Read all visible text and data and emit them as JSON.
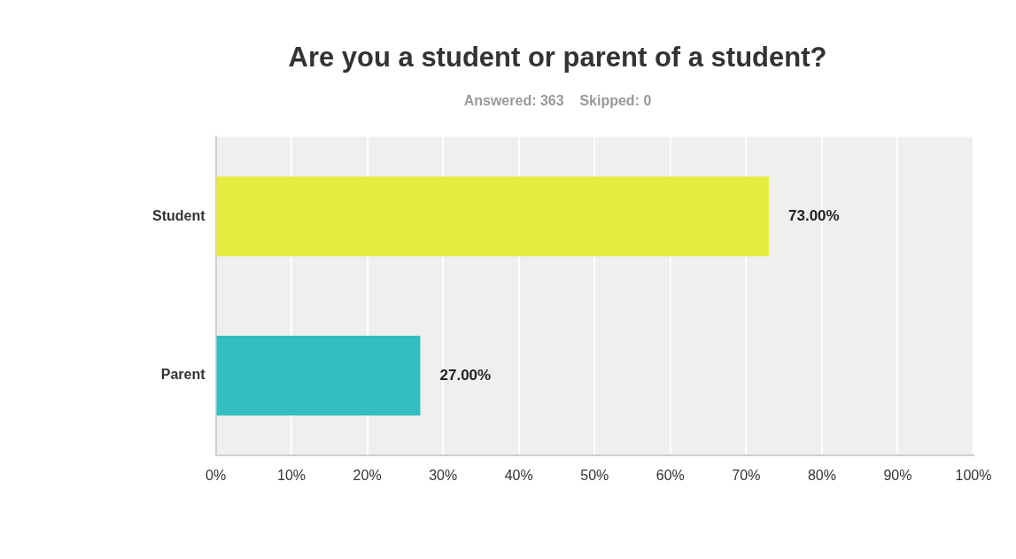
{
  "chart_data": {
    "type": "bar",
    "orientation": "horizontal",
    "title": "Are you a student or parent of a student?",
    "subtitle": "Answered: 363    Skipped: 0",
    "categories": [
      "Student",
      "Parent"
    ],
    "values": [
      73,
      27
    ],
    "colors": [
      "#e5ec3f",
      "#33bfc0"
    ],
    "value_labels": [
      "73.00%",
      "27.00%"
    ],
    "xlim": [
      0,
      100
    ],
    "xticks": [
      {
        "value": 0,
        "label": "0%"
      },
      {
        "value": 10,
        "label": "10%"
      },
      {
        "value": 20,
        "label": "20%"
      },
      {
        "value": 30,
        "label": "30%"
      },
      {
        "value": 40,
        "label": "40%"
      },
      {
        "value": 50,
        "label": "50%"
      },
      {
        "value": 60,
        "label": "60%"
      },
      {
        "value": 70,
        "label": "70%"
      },
      {
        "value": 80,
        "label": "80%"
      },
      {
        "value": 90,
        "label": "90%"
      },
      {
        "value": 100,
        "label": "100%"
      }
    ],
    "grid": "x",
    "legend": false
  }
}
